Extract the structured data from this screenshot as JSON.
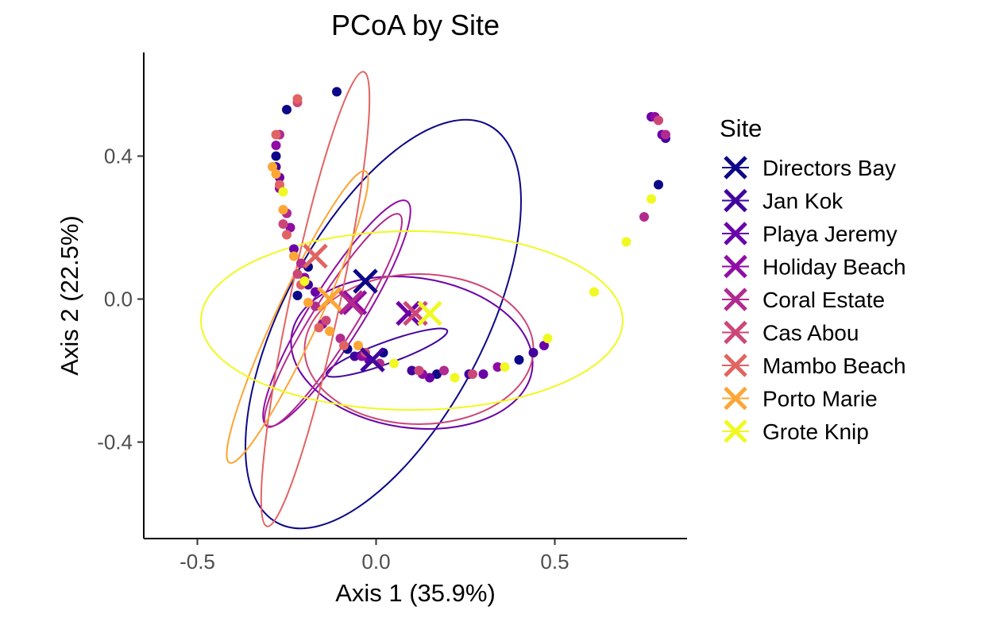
{
  "chart_data": {
    "type": "scatter",
    "title": "PCoA by Site",
    "xlabel": "Axis 1 (35.9%)",
    "ylabel": "Axis 2 (22.5%)",
    "xlim": [
      -0.65,
      0.87
    ],
    "ylim": [
      -0.67,
      0.69
    ],
    "x_ticks": [
      -0.5,
      0.0,
      0.5
    ],
    "x_tick_labels": [
      "-0.5",
      "0.0",
      "0.5"
    ],
    "y_ticks": [
      0.4,
      0.0,
      -0.4
    ],
    "y_tick_labels": [
      "0.4",
      "0.0",
      "-0.4"
    ],
    "grid": false,
    "legend": {
      "title": "Site",
      "position": "right"
    },
    "series": [
      {
        "name": "Directors Bay",
        "color": "#0d0887",
        "centroid": [
          -0.03,
          0.05
        ],
        "ellipse": {
          "cx": 0.02,
          "cy": -0.07,
          "rx": 0.63,
          "ry": 0.28,
          "angle": 62
        },
        "points": [
          [
            -0.11,
            0.58
          ],
          [
            -0.25,
            0.53
          ],
          [
            -0.28,
            0.4
          ],
          [
            0.79,
            0.32
          ],
          [
            -0.22,
            0.01
          ],
          [
            -0.08,
            -0.14
          ],
          [
            0.02,
            -0.15
          ],
          [
            0.4,
            -0.17
          ],
          [
            0.17,
            -0.21
          ],
          [
            -0.19,
            0.09
          ]
        ]
      },
      {
        "name": "Jan Kok",
        "color": "#41049d",
        "centroid": [
          -0.01,
          -0.17
        ],
        "ellipse": {
          "cx": 0.03,
          "cy": -0.15,
          "rx": 0.18,
          "ry": 0.03,
          "angle": 20
        },
        "points": [
          [
            0.81,
            0.45
          ],
          [
            -0.28,
            0.37
          ],
          [
            -0.19,
            0.04
          ],
          [
            -0.06,
            -0.16
          ],
          [
            0.1,
            -0.2
          ],
          [
            0.26,
            -0.21
          ],
          [
            0.44,
            -0.15
          ],
          [
            -0.25,
            0.24
          ]
        ]
      },
      {
        "name": "Playa Jeremy",
        "color": "#6a00a8",
        "centroid": [
          0.09,
          -0.04
        ],
        "ellipse": {
          "cx": 0.1,
          "cy": -0.15,
          "rx": 0.34,
          "ry": 0.21,
          "angle": -8
        },
        "points": [
          [
            0.77,
            0.51
          ],
          [
            0.8,
            0.46
          ],
          [
            -0.27,
            0.34
          ],
          [
            -0.17,
            0.02
          ],
          [
            -0.02,
            -0.17
          ],
          [
            0.15,
            -0.22
          ],
          [
            0.3,
            -0.21
          ],
          [
            0.47,
            -0.13
          ],
          [
            -0.23,
            0.14
          ]
        ]
      },
      {
        "name": "Holiday Beach",
        "color": "#8f0da4",
        "centroid": [
          -0.06,
          -0.01
        ],
        "ellipse": {
          "cx": -0.11,
          "cy": -0.04,
          "rx": 0.37,
          "ry": 0.075,
          "angle": 58
        },
        "points": [
          [
            -0.28,
            0.43
          ],
          [
            0.78,
            0.51
          ],
          [
            -0.27,
            0.31
          ],
          [
            -0.24,
            0.2
          ],
          [
            -0.2,
            0.06
          ],
          [
            -0.15,
            -0.07
          ],
          [
            -0.04,
            -0.16
          ],
          [
            0.13,
            -0.21
          ],
          [
            0.34,
            -0.19
          ]
        ]
      },
      {
        "name": "Coral Estate",
        "color": "#b12a90",
        "centroid": [
          -0.07,
          -0.01
        ],
        "ellipse": {
          "cx": -0.12,
          "cy": -0.06,
          "rx": 0.35,
          "ry": 0.06,
          "angle": 58
        },
        "points": [
          [
            -0.27,
            0.46
          ],
          [
            0.75,
            0.23
          ],
          [
            -0.25,
            0.24
          ],
          [
            -0.21,
            0.1
          ],
          [
            -0.17,
            -0.02
          ],
          [
            -0.1,
            -0.11
          ],
          [
            0.01,
            -0.18
          ],
          [
            0.19,
            -0.2
          ],
          [
            0.81,
            0.46
          ]
        ]
      },
      {
        "name": "Cas Abou",
        "color": "#cc4778",
        "centroid": [
          0.11,
          -0.04
        ],
        "ellipse": {
          "cx": 0.12,
          "cy": -0.14,
          "rx": 0.32,
          "ry": 0.21,
          "angle": 0
        },
        "points": [
          [
            0.79,
            0.5
          ],
          [
            -0.22,
            0.55
          ],
          [
            -0.26,
            0.21
          ],
          [
            -0.22,
            0.07
          ],
          [
            -0.14,
            -0.06
          ],
          [
            -0.03,
            -0.15
          ],
          [
            0.27,
            -0.21
          ],
          [
            0.12,
            -0.2
          ]
        ]
      },
      {
        "name": "Mambo Beach",
        "color": "#e16462",
        "centroid": [
          -0.17,
          0.12
        ],
        "ellipse": {
          "cx": -0.17,
          "cy": 0.0,
          "rx": 0.65,
          "ry": 0.07,
          "angle": 78
        },
        "points": [
          [
            -0.22,
            0.56
          ],
          [
            -0.28,
            0.46
          ],
          [
            -0.27,
            0.32
          ],
          [
            -0.25,
            0.18
          ],
          [
            -0.21,
            0.04
          ],
          [
            -0.16,
            -0.08
          ],
          [
            -0.09,
            -0.13
          ]
        ]
      },
      {
        "name": "Porto Marie",
        "color": "#fca636",
        "centroid": [
          -0.13,
          0.0
        ],
        "ellipse": {
          "cx": -0.22,
          "cy": -0.05,
          "rx": 0.45,
          "ry": 0.06,
          "angle": 65
        },
        "points": [
          [
            -0.29,
            0.37
          ],
          [
            -0.28,
            0.35
          ],
          [
            -0.26,
            0.25
          ],
          [
            -0.23,
            0.12
          ],
          [
            -0.19,
            -0.01
          ],
          [
            -0.13,
            -0.09
          ],
          [
            -0.05,
            -0.13
          ]
        ]
      },
      {
        "name": "Grote Knip",
        "color": "#f0f921",
        "centroid": [
          0.15,
          -0.04
        ],
        "ellipse": {
          "cx": 0.1,
          "cy": -0.06,
          "rx": 0.59,
          "ry": 0.25,
          "angle": 0
        },
        "points": [
          [
            0.77,
            0.28
          ],
          [
            0.7,
            0.16
          ],
          [
            0.61,
            0.02
          ],
          [
            0.48,
            -0.11
          ],
          [
            0.36,
            -0.19
          ],
          [
            0.22,
            -0.22
          ],
          [
            -0.26,
            0.3
          ],
          [
            -0.2,
            0.05
          ],
          [
            0.05,
            -0.18
          ]
        ]
      }
    ]
  }
}
